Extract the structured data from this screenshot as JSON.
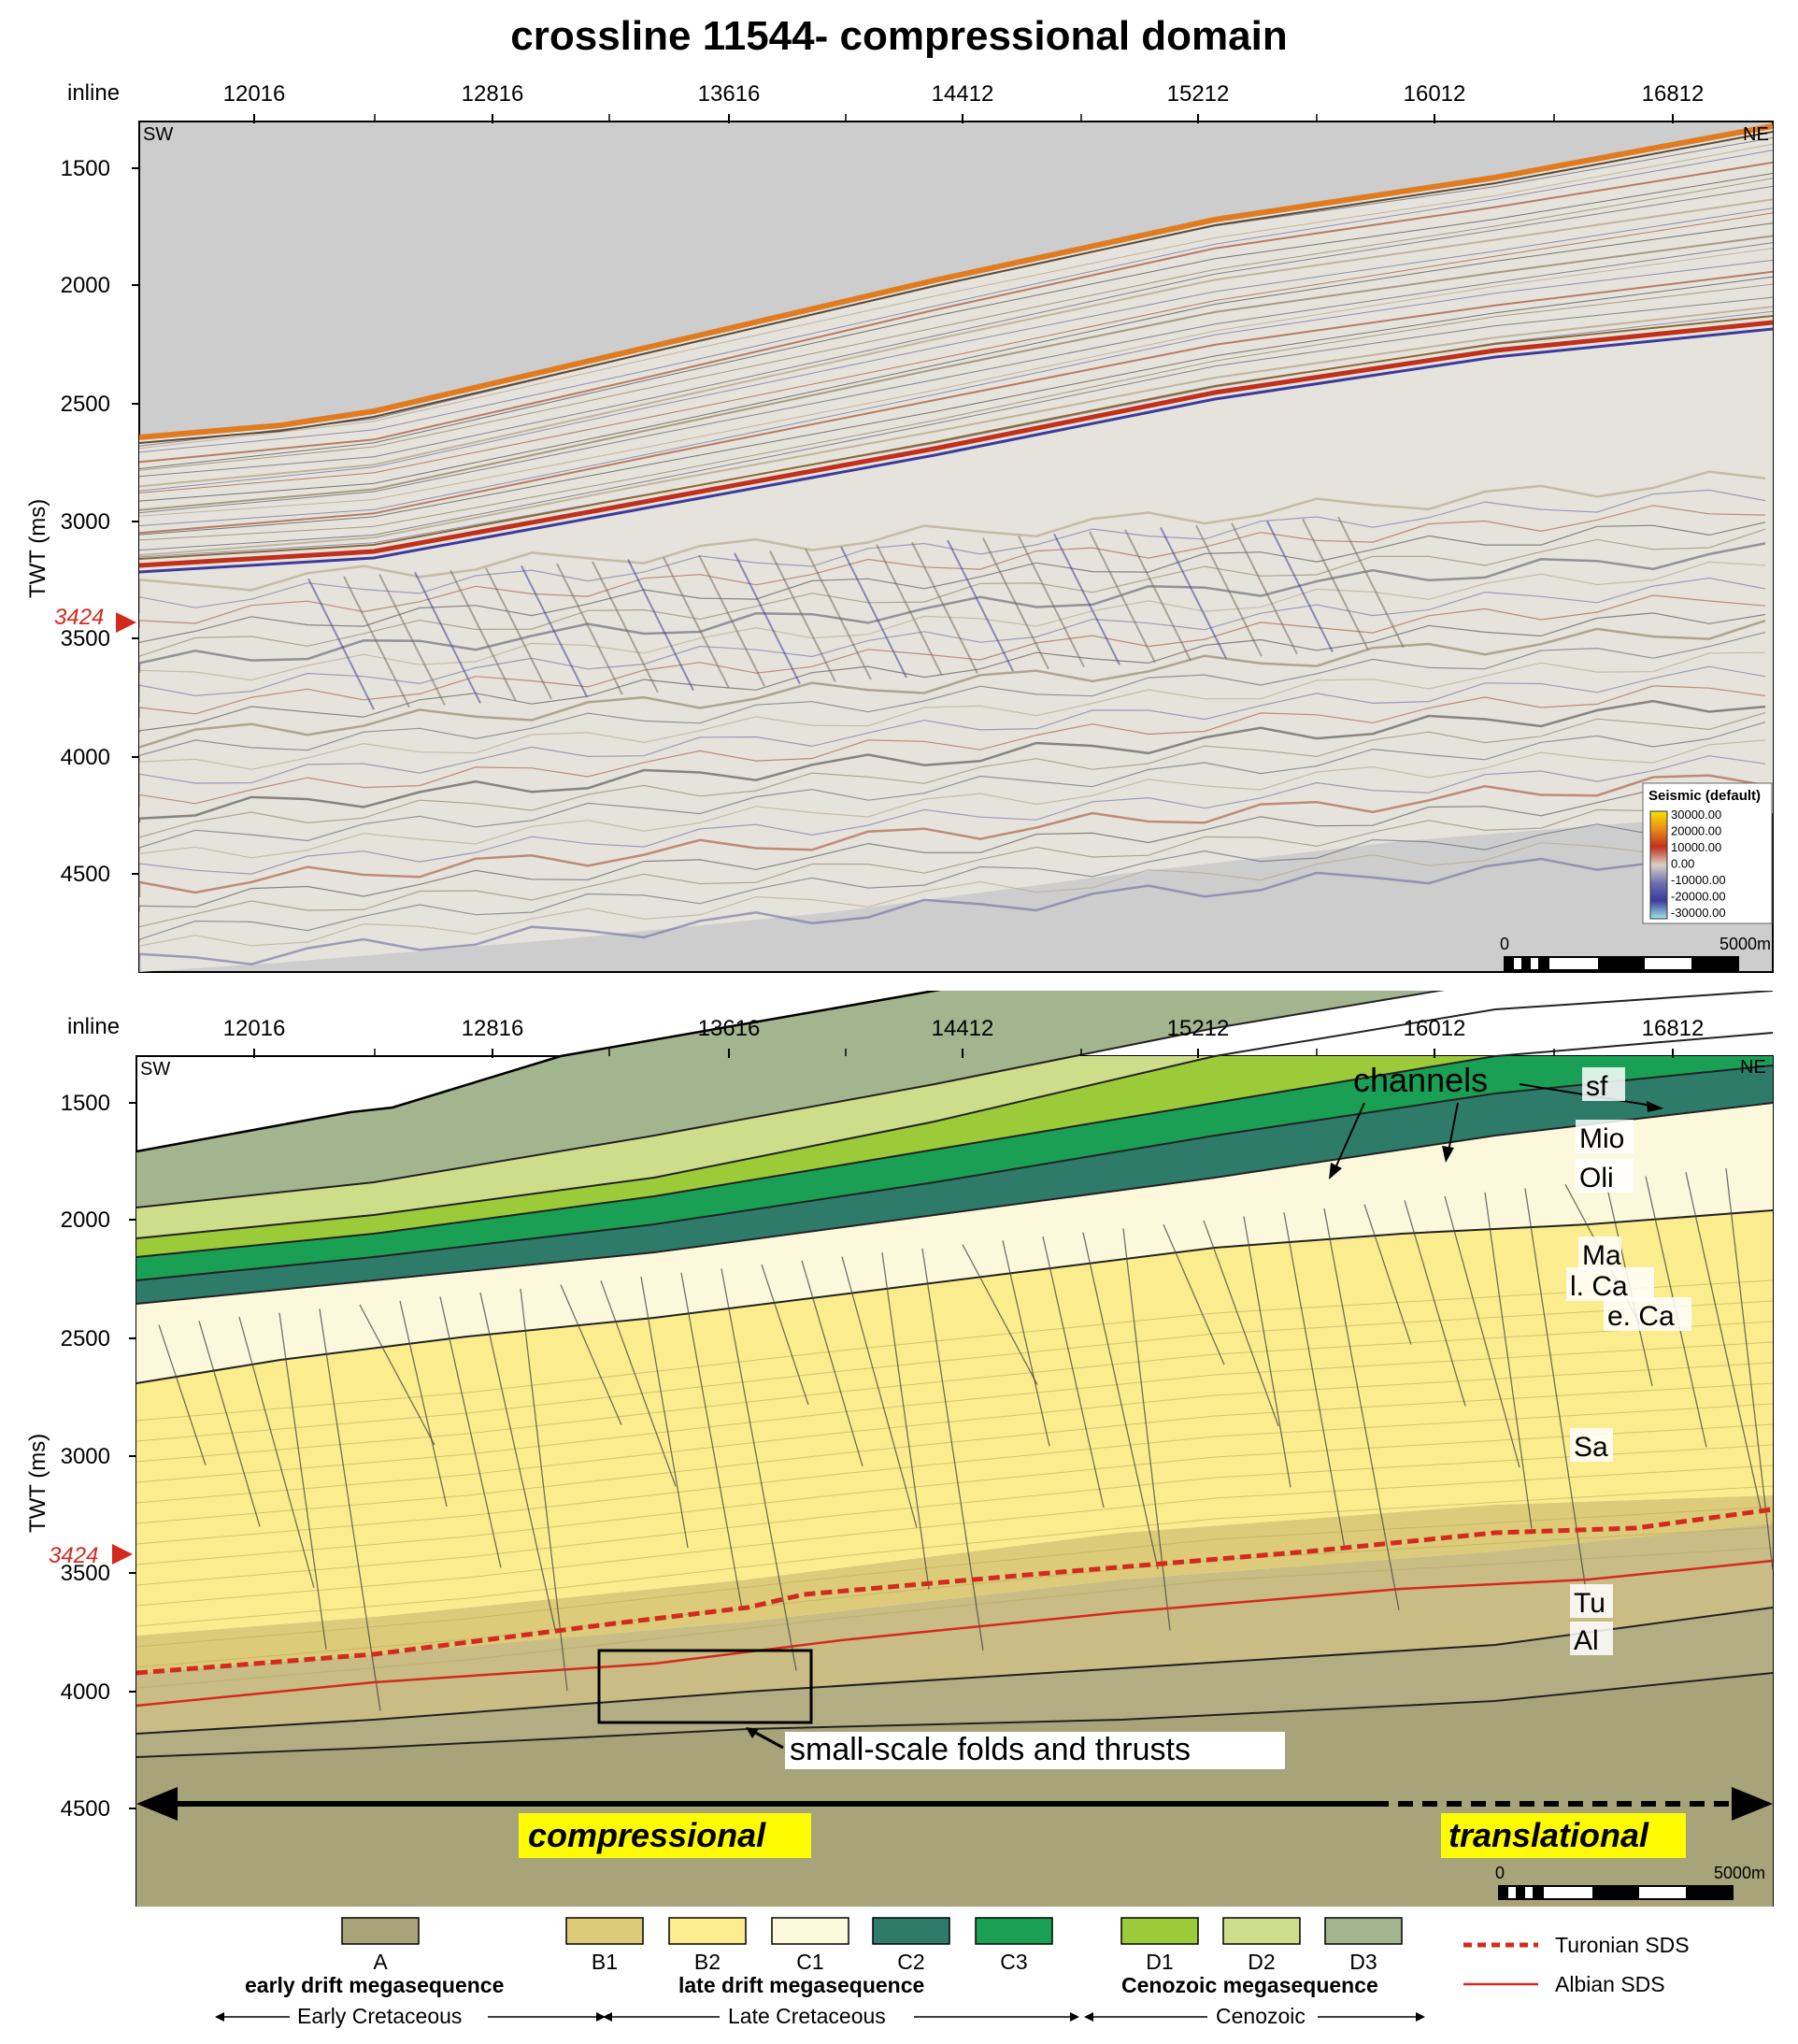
{
  "title": "crossline 11544- compressional domain",
  "axes": {
    "inline_label": "inline",
    "inline_ticks": [
      "12016",
      "12816",
      "13616",
      "14412",
      "15212",
      "16012",
      "16812"
    ],
    "twt_label": "TWT (ms)",
    "twt_ticks": [
      "1500",
      "2000",
      "2500",
      "3000",
      "3500",
      "4000",
      "4500"
    ],
    "marker": "3424"
  },
  "directions": {
    "left": "SW",
    "right": "NE"
  },
  "seismic_colorbar": {
    "title": "Seismic (default)",
    "values": [
      "30000.00",
      "20000.00",
      "10000.00",
      "0.00",
      "-10000.00",
      "-20000.00",
      "-30000.00"
    ],
    "colors": [
      "#f7e200",
      "#e88a1a",
      "#c0301c",
      "#d8d2c6",
      "#6f6fae",
      "#3b3b9e",
      "#9ee7e8"
    ]
  },
  "scalebar": {
    "start": "0",
    "end": "5000m"
  },
  "interpretation": {
    "unit_labels": [
      "sf",
      "Mio",
      "Oli",
      "Ma",
      "l. Ca",
      "e. Ca",
      "Sa",
      "Tu",
      "Al"
    ],
    "annotations": {
      "channels": "channels",
      "folds": "small-scale folds and thrusts",
      "compressional": "compressional",
      "translational": "translational"
    }
  },
  "legend": {
    "units": [
      {
        "code": "A",
        "color": "#a7a47a"
      },
      {
        "code": "B1",
        "color": "#dccb78"
      },
      {
        "code": "B2",
        "color": "#fbec8e"
      },
      {
        "code": "C1",
        "color": "#fbf8dc"
      },
      {
        "code": "C2",
        "color": "#2e7b6a"
      },
      {
        "code": "C3",
        "color": "#1aa055"
      },
      {
        "code": "D1",
        "color": "#9ccb3a"
      },
      {
        "code": "D2",
        "color": "#cedd8a"
      },
      {
        "code": "D3",
        "color": "#a2b58e"
      }
    ],
    "groups": [
      {
        "name": "early drift megasequence",
        "period": "Early Cretaceous"
      },
      {
        "name": "late drift megasequence",
        "period": "Late Cretaceous"
      },
      {
        "name": "Cenozoic megasequence",
        "period": "Cenozoic"
      }
    ],
    "lines": [
      {
        "label": "Turonian SDS",
        "color": "#d42a1e",
        "style": "dashed"
      },
      {
        "label": "Albian SDS",
        "color": "#d42a1e",
        "style": "solid"
      }
    ]
  }
}
